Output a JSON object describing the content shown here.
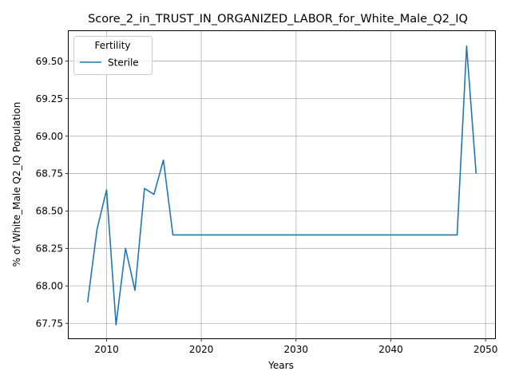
{
  "chart_data": {
    "type": "line",
    "title": "Score_2_in_TRUST_IN_ORGANIZED_LABOR_for_White_Male_Q2_IQ",
    "xlabel": "Years",
    "ylabel": "% of White_Male Q2_IQ Population",
    "xlim": [
      2006,
      2051
    ],
    "ylim": [
      67.65,
      69.7
    ],
    "xticks": [
      2010,
      2020,
      2030,
      2040,
      2050
    ],
    "yticks": [
      67.75,
      68.0,
      68.25,
      68.5,
      68.75,
      69.0,
      69.25,
      69.5
    ],
    "ytick_labels": [
      "67.75",
      "68.00",
      "68.25",
      "68.50",
      "68.75",
      "69.00",
      "69.25",
      "69.50"
    ],
    "grid": true,
    "legend": {
      "title": "Fertility",
      "placement": "top-left"
    },
    "series": [
      {
        "name": "Sterile",
        "color": "#1f77b4",
        "x": [
          2008,
          2009,
          2010,
          2011,
          2012,
          2013,
          2014,
          2015,
          2016,
          2017,
          2018,
          2019,
          2020,
          2021,
          2022,
          2023,
          2024,
          2025,
          2026,
          2027,
          2028,
          2029,
          2030,
          2031,
          2032,
          2033,
          2034,
          2035,
          2036,
          2037,
          2038,
          2039,
          2040,
          2041,
          2042,
          2043,
          2044,
          2045,
          2046,
          2047,
          2048,
          2049
        ],
        "y": [
          67.89,
          68.38,
          68.64,
          67.74,
          68.25,
          67.97,
          68.65,
          68.61,
          68.84,
          68.34,
          68.34,
          68.34,
          68.34,
          68.34,
          68.34,
          68.34,
          68.34,
          68.34,
          68.34,
          68.34,
          68.34,
          68.34,
          68.34,
          68.34,
          68.34,
          68.34,
          68.34,
          68.34,
          68.34,
          68.34,
          68.34,
          68.34,
          68.34,
          68.34,
          68.34,
          68.34,
          68.34,
          68.34,
          68.34,
          68.34,
          69.6,
          68.75
        ]
      }
    ]
  }
}
